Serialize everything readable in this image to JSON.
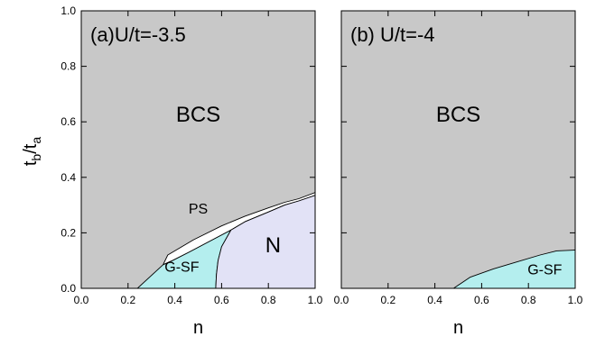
{
  "chart_data": {
    "type": "area",
    "ylabel_main": "t",
    "ylabel_sub1": "b",
    "ylabel_sep": "/t",
    "ylabel_sub2": "a",
    "xlabel": "n",
    "xticks": [
      "0.0",
      "0.2",
      "0.4",
      "0.6",
      "0.8",
      "1.0"
    ],
    "yticks": [
      "0.0",
      "0.2",
      "0.4",
      "0.6",
      "0.8",
      "1.0"
    ],
    "xlim": [
      0,
      1
    ],
    "ylim": [
      0,
      1
    ],
    "colors": {
      "BCS": "#c8c8c8",
      "PS": "#ffffff",
      "G-SF": "#b4eeee",
      "N": "#e2e2f6"
    },
    "panels": [
      {
        "title": "(a)U/t=-3.5",
        "regions": [
          {
            "label": "BCS",
            "label_at": [
              0.5,
              0.6
            ],
            "points": [
              [
                0,
                0
              ],
              [
                1,
                0
              ],
              [
                1,
                1
              ],
              [
                0,
                1
              ]
            ]
          },
          {
            "label": "PS",
            "label_at": [
              0.5,
              0.27
            ],
            "points": [
              [
                0.37,
                0.12
              ],
              [
                0.48,
                0.175
              ],
              [
                0.6,
                0.225
              ],
              [
                0.7,
                0.26
              ],
              [
                0.8,
                0.29
              ],
              [
                0.87,
                0.31
              ],
              [
                0.93,
                0.323
              ],
              [
                1,
                0.345
              ],
              [
                1,
                0.335
              ],
              [
                0.93,
                0.315
              ],
              [
                0.87,
                0.3
              ],
              [
                0.8,
                0.275
              ],
              [
                0.7,
                0.24
              ],
              [
                0.64,
                0.21
              ],
              [
                0.55,
                0.17
              ],
              [
                0.46,
                0.13
              ],
              [
                0.39,
                0.1
              ],
              [
                0.35,
                0.085
              ]
            ]
          },
          {
            "label": "G-SF",
            "label_at": [
              0.43,
              0.06
            ],
            "points": [
              [
                0.24,
                0
              ],
              [
                0.35,
                0.085
              ],
              [
                0.39,
                0.1
              ],
              [
                0.46,
                0.13
              ],
              [
                0.55,
                0.17
              ],
              [
                0.64,
                0.21
              ],
              [
                0.6,
                0.15
              ],
              [
                0.585,
                0.1
              ],
              [
                0.578,
                0.05
              ],
              [
                0.575,
                0
              ]
            ]
          },
          {
            "label": "N",
            "label_at": [
              0.82,
              0.13
            ],
            "points": [
              [
                0.575,
                0
              ],
              [
                0.578,
                0.05
              ],
              [
                0.585,
                0.1
              ],
              [
                0.6,
                0.15
              ],
              [
                0.64,
                0.21
              ],
              [
                0.7,
                0.24
              ],
              [
                0.8,
                0.275
              ],
              [
                0.87,
                0.3
              ],
              [
                0.93,
                0.315
              ],
              [
                1,
                0.335
              ],
              [
                1,
                0
              ]
            ]
          }
        ]
      },
      {
        "title": "(b) U/t=-4",
        "regions": [
          {
            "label": "BCS",
            "label_at": [
              0.5,
              0.6
            ],
            "points": [
              [
                0,
                0
              ],
              [
                1,
                0
              ],
              [
                1,
                1
              ],
              [
                0,
                1
              ]
            ]
          },
          {
            "label": "G-SF",
            "label_at": [
              0.87,
              0.05
            ],
            "points": [
              [
                0.48,
                0
              ],
              [
                0.55,
                0.04
              ],
              [
                0.65,
                0.07
              ],
              [
                0.75,
                0.095
              ],
              [
                0.85,
                0.12
              ],
              [
                0.92,
                0.135
              ],
              [
                1,
                0.138
              ],
              [
                1,
                0
              ]
            ]
          }
        ]
      }
    ]
  }
}
